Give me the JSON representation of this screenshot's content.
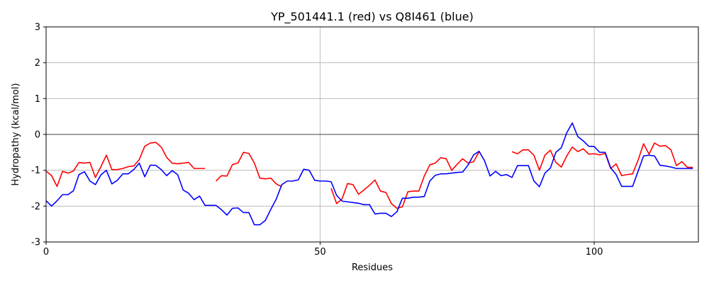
{
  "chart_data": {
    "type": "line",
    "title": "YP_501441.1 (red) vs Q8I461 (blue)",
    "xlabel": "Residues",
    "ylabel": "Hydropathy (kcal/mol)",
    "xlim": [
      0,
      119
    ],
    "ylim": [
      -3,
      3
    ],
    "xticks": [
      0,
      50,
      100
    ],
    "yticks": [
      -3,
      -2,
      -1,
      0,
      1,
      2,
      3
    ],
    "grid": true,
    "series": [
      {
        "color": "#ff0000",
        "segments": [
          [
            [
              0,
              -1.02
            ],
            [
              1,
              -1.15
            ],
            [
              2,
              -1.45
            ],
            [
              3,
              -1.03
            ],
            [
              4,
              -1.08
            ],
            [
              5,
              -1.02
            ],
            [
              6,
              -0.78
            ],
            [
              7,
              -0.8
            ],
            [
              8,
              -0.78
            ],
            [
              9,
              -1.2
            ],
            [
              10,
              -0.9
            ],
            [
              11,
              -0.58
            ],
            [
              12,
              -0.98
            ],
            [
              13,
              -0.98
            ],
            [
              14,
              -0.95
            ],
            [
              15,
              -0.9
            ],
            [
              16,
              -0.88
            ],
            [
              17,
              -0.7
            ],
            [
              18,
              -0.33
            ],
            [
              19,
              -0.24
            ],
            [
              20,
              -0.22
            ],
            [
              21,
              -0.35
            ],
            [
              22,
              -0.64
            ],
            [
              23,
              -0.8
            ],
            [
              24,
              -0.82
            ],
            [
              25,
              -0.8
            ],
            [
              26,
              -0.78
            ],
            [
              27,
              -0.95
            ],
            [
              28,
              -0.95
            ],
            [
              29,
              -0.95
            ]
          ],
          [
            [
              31,
              -1.3
            ],
            [
              32,
              -1.15
            ],
            [
              33,
              -1.16
            ],
            [
              34,
              -0.84
            ],
            [
              35,
              -0.8
            ],
            [
              36,
              -0.5
            ],
            [
              37,
              -0.53
            ],
            [
              38,
              -0.8
            ],
            [
              39,
              -1.22
            ],
            [
              40,
              -1.24
            ],
            [
              41,
              -1.22
            ],
            [
              42,
              -1.38
            ],
            [
              43,
              -1.46
            ]
          ],
          [
            [
              52,
              -1.5
            ],
            [
              53,
              -1.93
            ],
            [
              54,
              -1.8
            ],
            [
              55,
              -1.37
            ],
            [
              56,
              -1.4
            ],
            [
              57,
              -1.67
            ],
            [
              58,
              -1.55
            ],
            [
              59,
              -1.42
            ],
            [
              60,
              -1.27
            ],
            [
              61,
              -1.58
            ],
            [
              62,
              -1.62
            ],
            [
              63,
              -1.93
            ],
            [
              64,
              -2.06
            ],
            [
              65,
              -2.02
            ],
            [
              66,
              -1.6
            ],
            [
              67,
              -1.58
            ],
            [
              68,
              -1.58
            ],
            [
              69,
              -1.16
            ],
            [
              70,
              -0.85
            ],
            [
              71,
              -0.8
            ],
            [
              72,
              -0.65
            ],
            [
              73,
              -0.68
            ],
            [
              74,
              -1.0
            ],
            [
              75,
              -0.83
            ],
            [
              76,
              -0.68
            ],
            [
              77,
              -0.8
            ],
            [
              78,
              -0.76
            ],
            [
              79,
              -0.48
            ]
          ],
          [
            [
              85,
              -0.48
            ],
            [
              86,
              -0.54
            ],
            [
              87,
              -0.43
            ],
            [
              88,
              -0.43
            ],
            [
              89,
              -0.58
            ],
            [
              90,
              -1.0
            ],
            [
              91,
              -0.58
            ],
            [
              92,
              -0.44
            ],
            [
              93,
              -0.78
            ],
            [
              94,
              -0.91
            ],
            [
              95,
              -0.6
            ],
            [
              96,
              -0.35
            ],
            [
              97,
              -0.48
            ],
            [
              98,
              -0.4
            ],
            [
              99,
              -0.55
            ],
            [
              100,
              -0.54
            ],
            [
              101,
              -0.57
            ],
            [
              102,
              -0.53
            ],
            [
              103,
              -0.95
            ],
            [
              104,
              -0.82
            ],
            [
              105,
              -1.15
            ],
            [
              106,
              -1.12
            ],
            [
              107,
              -1.1
            ],
            [
              108,
              -0.72
            ],
            [
              109,
              -0.26
            ],
            [
              110,
              -0.55
            ],
            [
              111,
              -0.24
            ],
            [
              112,
              -0.33
            ],
            [
              113,
              -0.31
            ],
            [
              114,
              -0.43
            ],
            [
              115,
              -0.87
            ],
            [
              116,
              -0.76
            ],
            [
              117,
              -0.92
            ],
            [
              118,
              -0.92
            ]
          ]
        ]
      },
      {
        "color": "#0000ff",
        "segments": [
          [
            [
              0,
              -1.85
            ],
            [
              1,
              -2.0
            ],
            [
              2,
              -1.85
            ],
            [
              3,
              -1.68
            ],
            [
              4,
              -1.68
            ],
            [
              5,
              -1.57
            ],
            [
              6,
              -1.12
            ],
            [
              7,
              -1.04
            ],
            [
              8,
              -1.3
            ],
            [
              9,
              -1.4
            ],
            [
              10,
              -1.13
            ],
            [
              11,
              -1.0
            ],
            [
              12,
              -1.38
            ],
            [
              13,
              -1.28
            ],
            [
              14,
              -1.1
            ],
            [
              15,
              -1.1
            ],
            [
              16,
              -0.98
            ],
            [
              17,
              -0.8
            ],
            [
              18,
              -1.18
            ],
            [
              19,
              -0.86
            ],
            [
              20,
              -0.86
            ],
            [
              21,
              -0.98
            ],
            [
              22,
              -1.15
            ],
            [
              23,
              -1.01
            ],
            [
              24,
              -1.12
            ],
            [
              25,
              -1.55
            ],
            [
              26,
              -1.64
            ],
            [
              27,
              -1.82
            ],
            [
              28,
              -1.72
            ],
            [
              29,
              -1.98
            ],
            [
              30,
              -1.98
            ],
            [
              31,
              -1.98
            ],
            [
              32,
              -2.1
            ],
            [
              33,
              -2.25
            ],
            [
              34,
              -2.06
            ],
            [
              35,
              -2.05
            ],
            [
              36,
              -2.18
            ],
            [
              37,
              -2.18
            ],
            [
              38,
              -2.52
            ],
            [
              39,
              -2.52
            ],
            [
              40,
              -2.4
            ],
            [
              41,
              -2.09
            ],
            [
              42,
              -1.8
            ],
            [
              43,
              -1.4
            ],
            [
              44,
              -1.3
            ],
            [
              45,
              -1.3
            ],
            [
              46,
              -1.27
            ],
            [
              47,
              -0.97
            ],
            [
              48,
              -1.0
            ],
            [
              49,
              -1.28
            ],
            [
              50,
              -1.3
            ],
            [
              51,
              -1.3
            ],
            [
              52,
              -1.32
            ],
            [
              53,
              -1.7
            ],
            [
              54,
              -1.86
            ],
            [
              55,
              -1.88
            ],
            [
              56,
              -1.9
            ],
            [
              57,
              -1.92
            ],
            [
              58,
              -1.96
            ],
            [
              59,
              -1.96
            ],
            [
              60,
              -2.22
            ],
            [
              61,
              -2.2
            ],
            [
              62,
              -2.2
            ],
            [
              63,
              -2.29
            ],
            [
              64,
              -2.16
            ],
            [
              65,
              -1.78
            ],
            [
              66,
              -1.78
            ],
            [
              67,
              -1.75
            ],
            [
              68,
              -1.75
            ],
            [
              69,
              -1.73
            ],
            [
              70,
              -1.3
            ],
            [
              71,
              -1.14
            ],
            [
              72,
              -1.1
            ],
            [
              73,
              -1.1
            ],
            [
              74,
              -1.08
            ],
            [
              75,
              -1.06
            ],
            [
              76,
              -1.05
            ],
            [
              77,
              -0.85
            ],
            [
              78,
              -0.57
            ],
            [
              79,
              -0.47
            ],
            [
              80,
              -0.74
            ],
            [
              81,
              -1.16
            ],
            [
              82,
              -1.03
            ],
            [
              83,
              -1.15
            ],
            [
              84,
              -1.12
            ],
            [
              85,
              -1.2
            ],
            [
              86,
              -0.87
            ],
            [
              87,
              -0.87
            ],
            [
              88,
              -0.87
            ],
            [
              89,
              -1.3
            ],
            [
              90,
              -1.46
            ],
            [
              91,
              -1.08
            ],
            [
              92,
              -0.94
            ],
            [
              93,
              -0.5
            ],
            [
              94,
              -0.37
            ],
            [
              95,
              0.05
            ],
            [
              96,
              0.32
            ],
            [
              97,
              -0.06
            ],
            [
              98,
              -0.18
            ],
            [
              99,
              -0.33
            ],
            [
              100,
              -0.34
            ],
            [
              101,
              -0.5
            ],
            [
              102,
              -0.5
            ],
            [
              103,
              -0.93
            ],
            [
              104,
              -1.12
            ],
            [
              105,
              -1.45
            ],
            [
              106,
              -1.45
            ],
            [
              107,
              -1.45
            ],
            [
              108,
              -1.03
            ],
            [
              109,
              -0.6
            ],
            [
              110,
              -0.58
            ],
            [
              111,
              -0.6
            ],
            [
              112,
              -0.86
            ],
            [
              113,
              -0.88
            ],
            [
              114,
              -0.91
            ],
            [
              115,
              -0.95
            ],
            [
              116,
              -0.95
            ],
            [
              117,
              -0.95
            ],
            [
              118,
              -0.95
            ]
          ]
        ]
      }
    ]
  }
}
